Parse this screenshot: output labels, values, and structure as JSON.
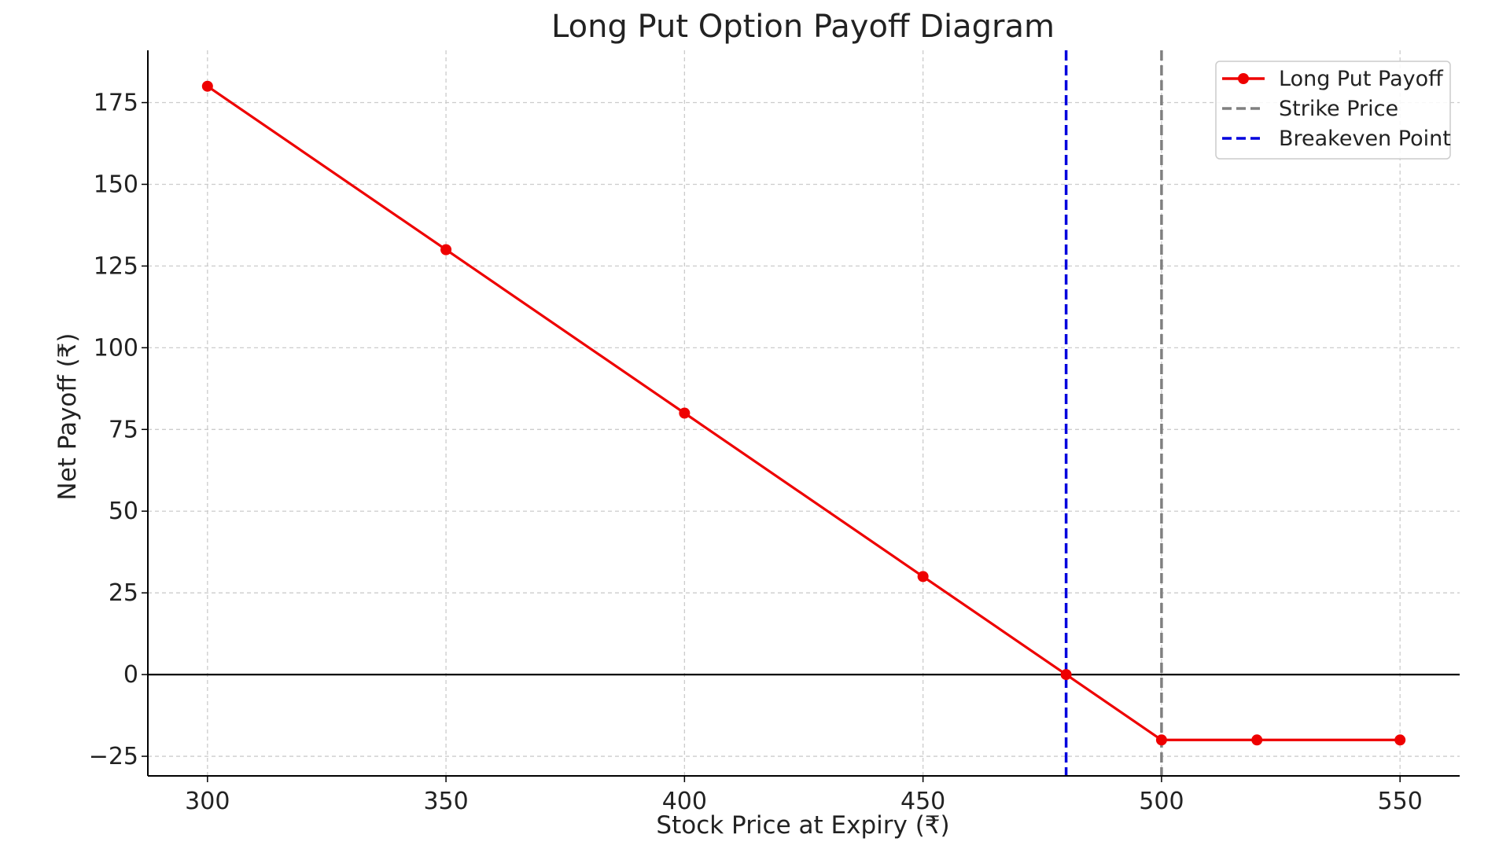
{
  "chart_data": {
    "type": "line",
    "title": "Long Put Option Payoff Diagram",
    "xlabel": "Stock Price at Expiry (₹)",
    "ylabel": "Net Payoff (₹)",
    "xlim": [
      287.5,
      562.5
    ],
    "ylim": [
      -31,
      191
    ],
    "xticks": [
      300,
      350,
      400,
      450,
      500,
      550
    ],
    "yticks": [
      -25,
      0,
      25,
      50,
      75,
      100,
      125,
      150,
      175
    ],
    "xtick_labels": [
      "300",
      "350",
      "400",
      "450",
      "500",
      "550"
    ],
    "ytick_labels": [
      "−25",
      "0",
      "25",
      "50",
      "75",
      "100",
      "125",
      "150",
      "175"
    ],
    "grid": true,
    "legend_position": "top-right",
    "series": [
      {
        "name": "Long Put Payoff",
        "style": "solid-with-markers",
        "color": "#ee0000",
        "x": [
          300,
          350,
          400,
          450,
          480,
          500,
          520,
          550
        ],
        "y": [
          180,
          130,
          80,
          30,
          0,
          -20,
          -20,
          -20
        ]
      }
    ],
    "reference_lines": [
      {
        "name": "Strike Price",
        "orientation": "vertical",
        "x": 500,
        "style": "dashed",
        "color": "#808080"
      },
      {
        "name": "Breakeven Point",
        "orientation": "vertical",
        "x": 480,
        "style": "dashed",
        "color": "#0000dd"
      },
      {
        "name": "",
        "orientation": "horizontal",
        "y": 0,
        "style": "solid",
        "color": "#000000"
      }
    ],
    "legend": [
      "Long Put Payoff",
      "Strike Price",
      "Breakeven Point"
    ]
  }
}
